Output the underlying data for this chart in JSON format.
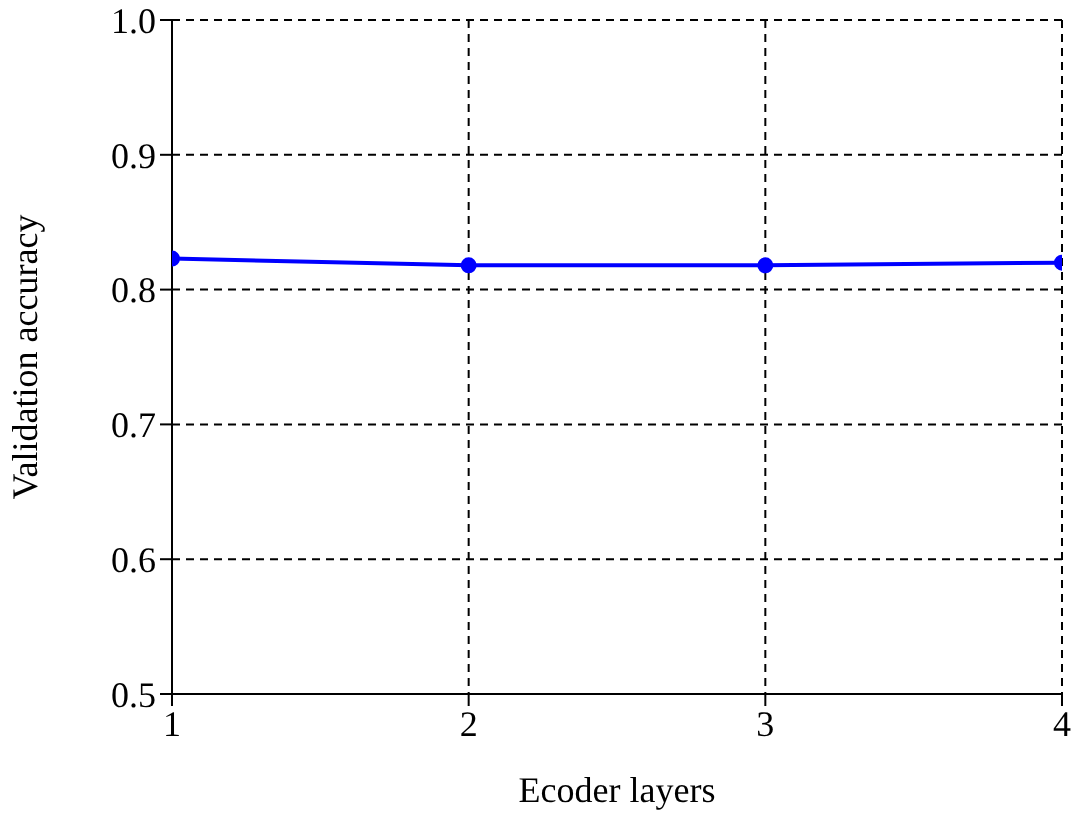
{
  "chart_data": {
    "type": "line",
    "xlabel": "Ecoder layers",
    "ylabel": "Validation accuracy",
    "x": [
      1,
      2,
      3,
      4
    ],
    "series": [
      {
        "color": "#0000ff",
        "values": [
          0.823,
          0.818,
          0.818,
          0.82
        ]
      }
    ],
    "xlim": [
      1,
      4
    ],
    "xticks": [
      1,
      2,
      3,
      4
    ],
    "ylim": [
      0.5,
      1.0
    ],
    "yticks": [
      0.5,
      0.6,
      0.7,
      0.8,
      0.9,
      {
        "value": 1.0,
        "label": "1.0"
      }
    ],
    "grid": true,
    "marker": "circle",
    "line_style": "solid"
  }
}
